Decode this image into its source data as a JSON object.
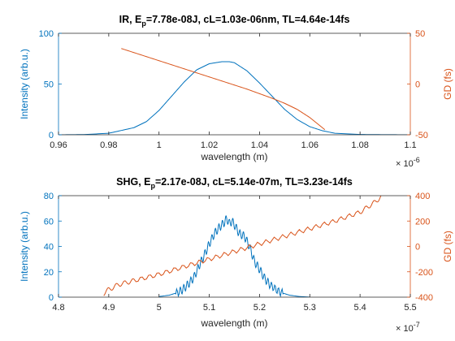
{
  "figure": {
    "background": "#ffffff"
  },
  "colors": {
    "intensity": "#0072BD",
    "gd": "#D95319",
    "axis": "#262626"
  },
  "chart_data": [
    {
      "type": "line",
      "title": "IR, E_p=7.78e-08J, cL=1.03e-06nm, TL=4.64e-14fs",
      "title_parts": {
        "before": "IR, E",
        "subscript": "p",
        "after": "=7.78e-08J, cL=1.03e-06nm, TL=4.64e-14fs"
      },
      "xlabel": "wavelength (m)",
      "x_exponent": "-6",
      "xlim": [
        0.96,
        1.1
      ],
      "x_ticks": [
        0.96,
        0.98,
        1,
        1.02,
        1.04,
        1.06,
        1.08,
        1.1
      ],
      "x_tick_labels": [
        "0.96",
        "0.98",
        "1",
        "1.02",
        "1.04",
        "1.06",
        "1.08",
        "1.1"
      ],
      "ylabel_left": "Intensity (arb.u.)",
      "ylim_left": [
        0,
        100
      ],
      "y_left_ticks": [
        0,
        50,
        100
      ],
      "y_left_tick_labels": [
        "0",
        "50",
        "100"
      ],
      "ylabel_right": "GD (fs)",
      "ylim_right": [
        -50,
        50
      ],
      "y_right_ticks": [
        -50,
        0,
        50
      ],
      "y_right_tick_labels": [
        "-50",
        "0",
        "50"
      ],
      "series": [
        {
          "axis": "left",
          "color": "#0072BD",
          "x": [
            0.96,
            0.97,
            0.98,
            0.99,
            0.995,
            1.0,
            1.005,
            1.01,
            1.015,
            1.02,
            1.025,
            1.028,
            1.03,
            1.035,
            1.04,
            1.045,
            1.05,
            1.055,
            1.06,
            1.065,
            1.07,
            1.08,
            1.09,
            1.1
          ],
          "y": [
            0,
            0.2,
            1.5,
            7,
            13,
            24,
            38,
            52,
            64,
            70,
            72,
            72,
            71,
            63,
            51,
            38,
            25,
            15,
            8,
            4,
            1.5,
            0.3,
            0.1,
            0
          ]
        },
        {
          "axis": "right",
          "color": "#D95319",
          "x": [
            0.985,
            0.995,
            1.005,
            1.015,
            1.025,
            1.035,
            1.045,
            1.05,
            1.055,
            1.06,
            1.063,
            1.066
          ],
          "y": [
            35,
            27,
            19,
            11,
            3,
            -5,
            -14,
            -19,
            -25,
            -33,
            -39,
            -45
          ]
        }
      ]
    },
    {
      "type": "line",
      "title": "SHG, E_p=2.17e-08J, cL=5.14e-07m, TL=3.23e-14fs",
      "title_parts": {
        "before": "SHG, E",
        "subscript": "p",
        "after": "=2.17e-08J, cL=5.14e-07m, TL=3.23e-14fs"
      },
      "xlabel": "wavelength (m)",
      "x_exponent": "-7",
      "xlim": [
        4.8,
        5.5
      ],
      "x_ticks": [
        4.8,
        4.9,
        5,
        5.1,
        5.2,
        5.3,
        5.4,
        5.5
      ],
      "x_tick_labels": [
        "4.8",
        "4.9",
        "5",
        "5.1",
        "5.2",
        "5.3",
        "5.4",
        "5.5"
      ],
      "ylabel_left": "Intensity (arb.u.)",
      "ylim_left": [
        0,
        80
      ],
      "y_left_ticks": [
        0,
        20,
        40,
        60,
        80
      ],
      "y_left_tick_labels": [
        "0",
        "20",
        "40",
        "60",
        "80"
      ],
      "ylabel_right": "GD (fs)",
      "ylim_right": [
        -400,
        400
      ],
      "y_right_ticks": [
        -400,
        -200,
        0,
        200,
        400
      ],
      "y_right_tick_labels": [
        "-400",
        "-200",
        "0",
        "200",
        "400"
      ],
      "series": [
        {
          "axis": "left",
          "color": "#0072BD",
          "x": [
            5.0,
            5.02,
            5.04,
            5.05,
            5.06,
            5.07,
            5.08,
            5.09,
            5.1,
            5.11,
            5.12,
            5.13,
            5.135,
            5.14,
            5.145,
            5.15,
            5.16,
            5.17,
            5.18,
            5.19,
            5.2,
            5.21,
            5.22,
            5.24,
            5.26,
            5.28,
            5.3
          ],
          "y": [
            0.5,
            1.5,
            4,
            7,
            11,
            16,
            25,
            33,
            42,
            50,
            55,
            59,
            62,
            58,
            60,
            57,
            50,
            48,
            40,
            28,
            22,
            15,
            10,
            4,
            1.5,
            0.5,
            0
          ]
        },
        {
          "axis": "right",
          "color": "#D95319",
          "x": [
            4.89,
            4.9,
            4.92,
            4.95,
            5.0,
            5.05,
            5.1,
            5.15,
            5.2,
            5.25,
            5.3,
            5.35,
            5.4,
            5.43,
            5.45
          ],
          "y": [
            -370,
            -340,
            -300,
            -270,
            -220,
            -160,
            -100,
            -40,
            20,
            80,
            140,
            200,
            270,
            350,
            420
          ]
        }
      ]
    }
  ]
}
